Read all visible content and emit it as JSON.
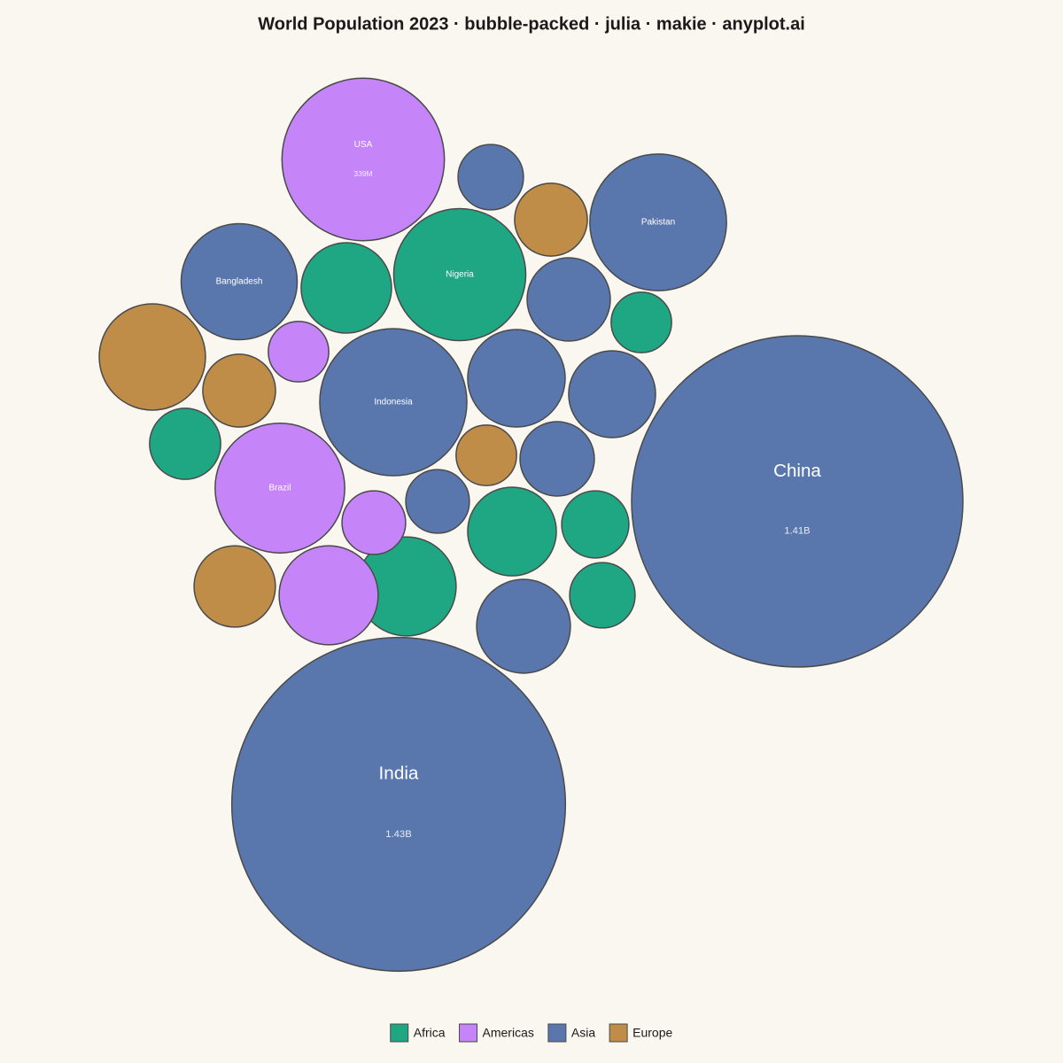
{
  "chart_data": {
    "type": "bubble-packed",
    "title": "World Population 2023 · bubble-packed · julia · makie · anyplot.ai",
    "series": [
      {
        "name": "Africa",
        "color": "#1fa784",
        "labels": [
          "Nigeria",
          null,
          null,
          null,
          null,
          null,
          null,
          null
        ],
        "values": [
          224000000,
          105000000,
          47000000,
          65000000,
          101000000,
          58000000,
          126000000,
          55000000
        ],
        "value_labels": [
          null,
          null,
          null,
          null,
          null,
          null,
          null,
          null
        ]
      },
      {
        "name": "Americas",
        "color": "#c584f8",
        "labels": [
          "USA",
          "Brazil",
          null,
          null,
          null
        ],
        "values": [
          339000000,
          216000000,
          47000000,
          52000000,
          126000000
        ],
        "value_labels": [
          "339M",
          null,
          null,
          null,
          null
        ]
      },
      {
        "name": "Asia",
        "color": "#5a77ad",
        "labels": [
          "India",
          "China",
          "Indonesia",
          "Pakistan",
          "Bangladesh",
          null,
          null,
          null,
          null,
          null,
          null,
          null
        ],
        "values": [
          1430000000,
          1410000000,
          278000000,
          240000000,
          173000000,
          55000000,
          89000000,
          122000000,
          97000000,
          71000000,
          52000000,
          113000000
        ],
        "value_labels": [
          "1.43B",
          "1.41B",
          null,
          null,
          null,
          null,
          null,
          null,
          null,
          null,
          null,
          null
        ]
      },
      {
        "name": "Europe",
        "color": "#c08d48",
        "labels": [
          null,
          null,
          null,
          null,
          null
        ],
        "values": [
          145000000,
          68000000,
          68000000,
          47000000,
          85000000
        ],
        "value_labels": [
          null,
          null,
          null,
          null,
          null
        ]
      }
    ]
  }
}
